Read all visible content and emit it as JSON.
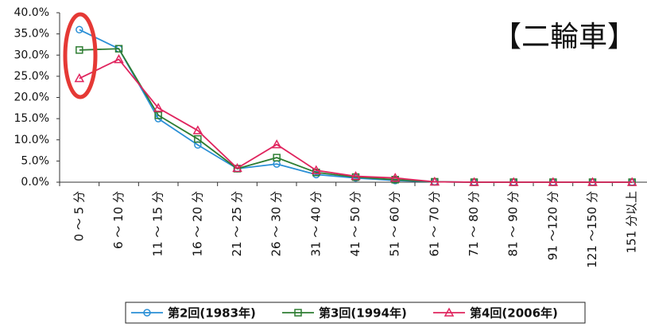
{
  "chart_data": {
    "type": "line",
    "annotation": "【二輪車】",
    "categories": [
      "0 ～ 5 分",
      "6 ～ 10 分",
      "11 ～ 15 分",
      "16 ～ 20 分",
      "21 ～ 25 分",
      "26 ～ 30 分",
      "31 ～ 40 分",
      "41 ～ 50 分",
      "51 ～ 60 分",
      "61 ～ 70 分",
      "71 ～ 80 分",
      "81 ～ 90 分",
      "91 ～120 分",
      "121 ～150 分",
      "151 分以上"
    ],
    "series": [
      {
        "name": "第2回(1983年)",
        "color": "#2a8fd6",
        "marker": "circle",
        "values": [
          36.0,
          31.5,
          15.0,
          8.8,
          3.2,
          4.3,
          1.8,
          1.0,
          0.4,
          0.1,
          0,
          0,
          0,
          0,
          0
        ]
      },
      {
        "name": "第3回(1994年)",
        "color": "#2e7d32",
        "marker": "square",
        "values": [
          31.2,
          31.5,
          15.8,
          10.2,
          3.2,
          5.8,
          2.3,
          1.2,
          0.6,
          0.1,
          0,
          0,
          0,
          0,
          0
        ]
      },
      {
        "name": "第4回(2006年)",
        "color": "#e0245e",
        "marker": "triangle",
        "values": [
          24.5,
          29.0,
          17.5,
          12.2,
          3.3,
          8.9,
          2.8,
          1.4,
          1.0,
          0.1,
          0,
          0,
          0,
          0,
          0
        ]
      }
    ],
    "ylim": [
      0,
      40
    ],
    "yticks": [
      {
        "value": 0,
        "label": "0.0%"
      },
      {
        "value": 5,
        "label": "5.0%"
      },
      {
        "value": 10,
        "label": "10.0%"
      },
      {
        "value": 15,
        "label": "15.0%"
      },
      {
        "value": 20,
        "label": "20.0%"
      },
      {
        "value": 25,
        "label": "25.0%"
      },
      {
        "value": 30,
        "label": "30.0%"
      },
      {
        "value": 35,
        "label": "35.0%"
      },
      {
        "value": 40,
        "label": "40.0%"
      }
    ]
  }
}
